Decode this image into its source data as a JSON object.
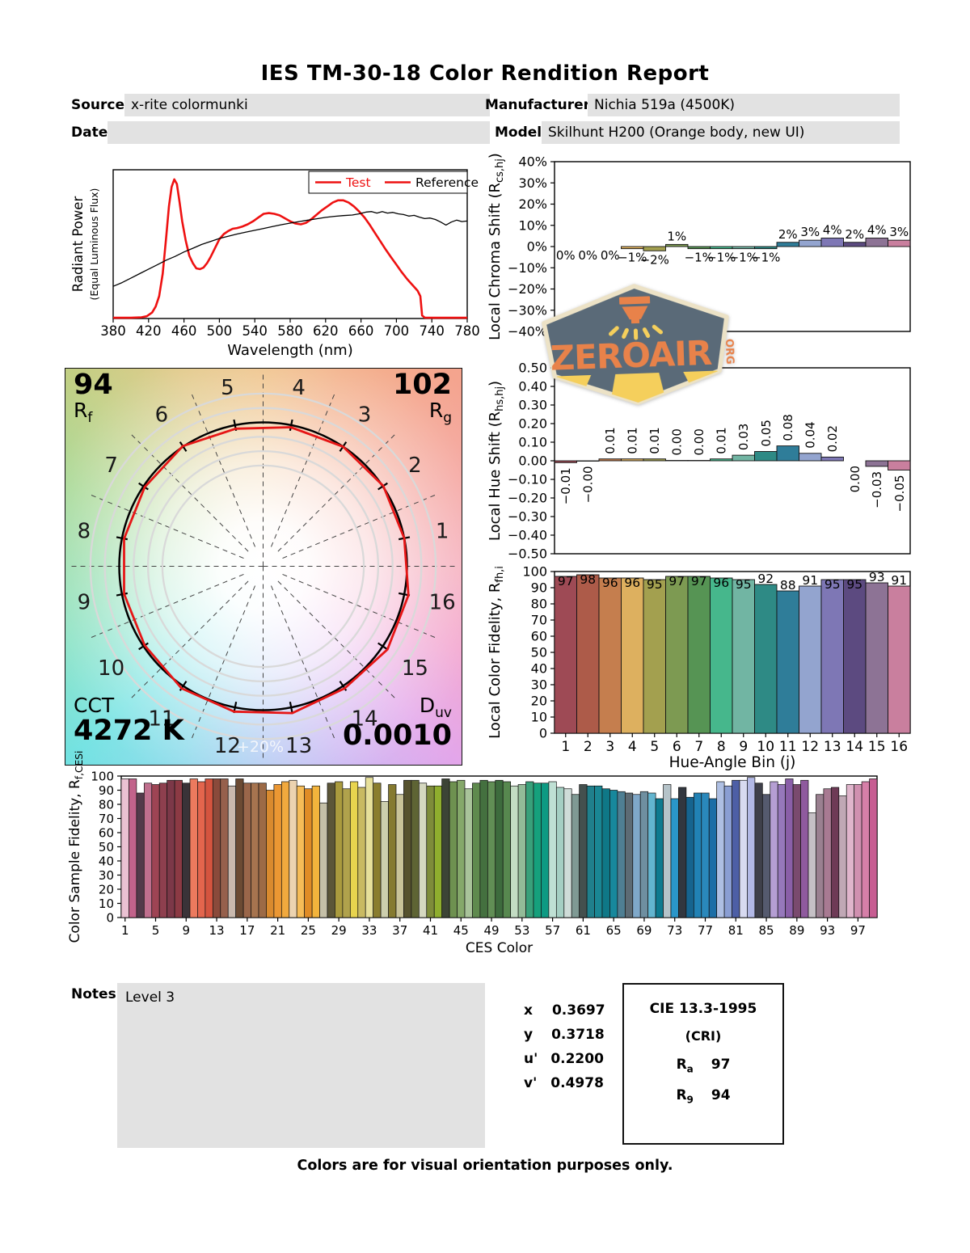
{
  "title": "IES TM-30-18 Color Rendition Report",
  "meta": {
    "source_label": "Source:",
    "source": "x-rite colormunki",
    "date_label": "Date:",
    "date": "",
    "manufacturer_label": "Manufacturer:",
    "manufacturer": "Nichia 519a (4500K)",
    "model_label": "Model:",
    "model": "Skilhunt H200 (Orange body, new UI)"
  },
  "logo": {
    "word": "ZEROAIR",
    "suffix": "ORG",
    "badge_color": "#5a6a78",
    "text_color": "#e8824a",
    "beam_color": "#f5cf5c",
    "border_color": "#ece2c6"
  },
  "notes": {
    "label": "Notes:",
    "content": "Level 3"
  },
  "chromaticity": {
    "rows": [
      {
        "label": "x",
        "value": "0.3697"
      },
      {
        "label": "y",
        "value": "0.3718"
      },
      {
        "label": "u'",
        "value": "0.2200"
      },
      {
        "label": "v'",
        "value": "0.4978"
      }
    ]
  },
  "cri_box": {
    "title": "CIE 13.3-1995",
    "subtitle": "(CRI)",
    "rows": [
      {
        "label": "R",
        "sub": "a",
        "value": "97"
      },
      {
        "label": "R",
        "sub": "9",
        "value": "94"
      }
    ]
  },
  "footer": "Colors are for visual orientation purposes only.",
  "cvg": {
    "rf_value": "94",
    "rf_label": "R",
    "rf_sub": "f",
    "rg_value": "102",
    "rg_label": "R",
    "rg_sub": "g",
    "cct_label": "CCT",
    "cct_value": "4272 K",
    "duv_label": "D",
    "duv_sub": "uv",
    "duv_value": "0.0010",
    "ring_label": "+20%",
    "bin_labels": [
      "1",
      "2",
      "3",
      "4",
      "5",
      "6",
      "7",
      "8",
      "9",
      "10",
      "11",
      "12",
      "13",
      "14",
      "15",
      "16"
    ],
    "red_radii": [
      1.0,
      1.005,
      1.0,
      0.985,
      0.975,
      1.005,
      0.99,
      0.985,
      0.985,
      0.99,
      1.02,
      1.03,
      1.04,
      1.02,
      1.04,
      1.03
    ]
  },
  "bin_palette": [
    "#9e4a55",
    "#ad5b49",
    "#c57e4e",
    "#ddb05f",
    "#a3a04f",
    "#7d9a52",
    "#569454",
    "#46b78c",
    "#71b5a3",
    "#2e8a85",
    "#2f7d99",
    "#93a4cf",
    "#7e77b5",
    "#5c4a80",
    "#8d7395",
    "#c97f9e"
  ],
  "chart_data": [
    {
      "id": "spd",
      "type": "line",
      "xlabel": "Wavelength (nm)",
      "ylabel": "Radiant Power",
      "ylabel2": "(Equal Luminous Flux)",
      "xlim": [
        380,
        780
      ],
      "xticks": [
        380,
        420,
        460,
        500,
        540,
        580,
        620,
        660,
        700,
        740,
        780
      ],
      "legend": [
        {
          "label": "Test",
          "line_color": "#ee1111",
          "text_color": "#ee1111"
        },
        {
          "label": "Reference",
          "line_color": "#ee1111",
          "text_color": "#000000"
        }
      ],
      "series": [
        {
          "name": "Test",
          "color": "#ee1111",
          "width": 2.6,
          "points": [
            [
              380,
              0.005
            ],
            [
              400,
              0.005
            ],
            [
              412,
              0.008
            ],
            [
              418,
              0.015
            ],
            [
              424,
              0.04
            ],
            [
              428,
              0.08
            ],
            [
              432,
              0.15
            ],
            [
              436,
              0.3
            ],
            [
              440,
              0.55
            ],
            [
              443,
              0.75
            ],
            [
              446,
              0.88
            ],
            [
              449,
              0.93
            ],
            [
              452,
              0.9
            ],
            [
              455,
              0.78
            ],
            [
              458,
              0.65
            ],
            [
              462,
              0.52
            ],
            [
              466,
              0.42
            ],
            [
              470,
              0.37
            ],
            [
              474,
              0.335
            ],
            [
              478,
              0.33
            ],
            [
              482,
              0.34
            ],
            [
              486,
              0.37
            ],
            [
              490,
              0.41
            ],
            [
              495,
              0.47
            ],
            [
              500,
              0.53
            ],
            [
              505,
              0.565
            ],
            [
              510,
              0.585
            ],
            [
              515,
              0.6
            ],
            [
              520,
              0.605
            ],
            [
              526,
              0.615
            ],
            [
              532,
              0.63
            ],
            [
              538,
              0.65
            ],
            [
              544,
              0.675
            ],
            [
              550,
              0.7
            ],
            [
              556,
              0.705
            ],
            [
              562,
              0.7
            ],
            [
              568,
              0.69
            ],
            [
              574,
              0.67
            ],
            [
              580,
              0.65
            ],
            [
              586,
              0.635
            ],
            [
              592,
              0.63
            ],
            [
              598,
              0.64
            ],
            [
              604,
              0.665
            ],
            [
              610,
              0.695
            ],
            [
              616,
              0.725
            ],
            [
              622,
              0.75
            ],
            [
              628,
              0.775
            ],
            [
              634,
              0.79
            ],
            [
              640,
              0.79
            ],
            [
              646,
              0.775
            ],
            [
              652,
              0.75
            ],
            [
              658,
              0.715
            ],
            [
              664,
              0.675
            ],
            [
              670,
              0.625
            ],
            [
              676,
              0.57
            ],
            [
              682,
              0.515
            ],
            [
              688,
              0.46
            ],
            [
              694,
              0.41
            ],
            [
              700,
              0.36
            ],
            [
              706,
              0.31
            ],
            [
              712,
              0.265
            ],
            [
              718,
              0.225
            ],
            [
              724,
              0.185
            ],
            [
              727,
              0.15
            ],
            [
              729,
              0.02
            ],
            [
              732,
              0.006
            ],
            [
              740,
              0.005
            ],
            [
              780,
              0.005
            ]
          ]
        },
        {
          "name": "Reference",
          "color": "#000000",
          "width": 1.3,
          "points": [
            [
              380,
              0.215
            ],
            [
              390,
              0.24
            ],
            [
              400,
              0.27
            ],
            [
              410,
              0.3
            ],
            [
              420,
              0.33
            ],
            [
              430,
              0.36
            ],
            [
              440,
              0.39
            ],
            [
              450,
              0.415
            ],
            [
              460,
              0.445
            ],
            [
              470,
              0.47
            ],
            [
              480,
              0.495
            ],
            [
              490,
              0.515
            ],
            [
              500,
              0.535
            ],
            [
              510,
              0.55
            ],
            [
              520,
              0.565
            ],
            [
              530,
              0.578
            ],
            [
              540,
              0.59
            ],
            [
              550,
              0.602
            ],
            [
              560,
              0.615
            ],
            [
              570,
              0.627
            ],
            [
              580,
              0.638
            ],
            [
              590,
              0.648
            ],
            [
              600,
              0.658
            ],
            [
              610,
              0.667
            ],
            [
              620,
              0.676
            ],
            [
              630,
              0.683
            ],
            [
              640,
              0.688
            ],
            [
              650,
              0.692
            ],
            [
              658,
              0.7
            ],
            [
              666,
              0.712
            ],
            [
              672,
              0.715
            ],
            [
              678,
              0.705
            ],
            [
              684,
              0.715
            ],
            [
              690,
              0.705
            ],
            [
              696,
              0.71
            ],
            [
              702,
              0.7
            ],
            [
              708,
              0.695
            ],
            [
              714,
              0.685
            ],
            [
              720,
              0.69
            ],
            [
              726,
              0.678
            ],
            [
              732,
              0.668
            ],
            [
              738,
              0.672
            ],
            [
              744,
              0.662
            ],
            [
              750,
              0.645
            ],
            [
              756,
              0.625
            ],
            [
              762,
              0.645
            ],
            [
              768,
              0.658
            ],
            [
              774,
              0.648
            ],
            [
              780,
              0.652
            ]
          ]
        }
      ]
    },
    {
      "id": "chroma_shift",
      "type": "bar",
      "ylabel_parts": [
        {
          "t": "Local Chroma Shift (R"
        },
        {
          "t": "cs,hj",
          "sub": true
        },
        {
          "t": ")"
        }
      ],
      "ylim": [
        -40,
        40
      ],
      "ytick_vals": [
        40,
        30,
        20,
        10,
        0,
        -10,
        -20,
        -30,
        -40
      ],
      "ytick_labels": [
        "40%",
        "30%",
        "20%",
        "10%",
        "0%",
        "−10%",
        "−20%",
        "−30%",
        "−40%"
      ],
      "values": [
        0,
        0,
        0,
        -1,
        -2,
        1,
        -1,
        -1,
        -1,
        -1,
        2,
        3,
        4,
        2,
        4,
        3
      ],
      "labels": [
        "0%",
        "0%",
        "0%",
        "−1%",
        "−2%",
        "1%",
        "−1%",
        "−1%",
        "−1%",
        "−1%",
        "2%",
        "3%",
        "4%",
        "2%",
        "4%",
        "3%"
      ]
    },
    {
      "id": "hue_shift",
      "type": "bar",
      "ylabel_parts": [
        {
          "t": "Local Hue Shift (R"
        },
        {
          "t": "hs,hj",
          "sub": true
        },
        {
          "t": ")"
        }
      ],
      "ylim": [
        -0.5,
        0.5
      ],
      "ytick_vals": [
        0.5,
        0.4,
        0.3,
        0.2,
        0.1,
        0,
        -0.1,
        -0.2,
        -0.3,
        -0.4,
        -0.5
      ],
      "ytick_labels": [
        "0.50",
        "0.40",
        "0.30",
        "0.20",
        "0.10",
        "0.00",
        "−0.10",
        "−0.20",
        "−0.30",
        "−0.40",
        "−0.50"
      ],
      "values": [
        -0.01,
        -0.002,
        0.01,
        0.01,
        0.01,
        0.002,
        0.002,
        0.01,
        0.03,
        0.05,
        0.08,
        0.04,
        0.02,
        0,
        -0.03,
        -0.05
      ],
      "labels": [
        "−0.01",
        "−0.00",
        "0.01",
        "0.01",
        "0.01",
        "0.00",
        "0.00",
        "0.01",
        "0.03",
        "0.05",
        "0.08",
        "0.04",
        "0.02",
        "0.00",
        "−0.03",
        "−0.05"
      ]
    },
    {
      "id": "fidelity",
      "type": "bar",
      "ylabel_parts": [
        {
          "t": "Local Color Fidelity, R"
        },
        {
          "t": "fh,i",
          "sub": true
        }
      ],
      "xlabel": "Hue-Angle Bin (j)",
      "ylim": [
        0,
        100
      ],
      "ytick_vals": [
        100,
        90,
        80,
        70,
        60,
        50,
        40,
        30,
        20,
        10,
        0
      ],
      "ytick_labels": [
        "100",
        "90",
        "80",
        "70",
        "60",
        "50",
        "40",
        "30",
        "20",
        "10",
        "0"
      ],
      "xticks": [
        "1",
        "2",
        "3",
        "4",
        "5",
        "6",
        "7",
        "8",
        "9",
        "10",
        "11",
        "12",
        "13",
        "14",
        "15",
        "16"
      ],
      "values": [
        97,
        98,
        96,
        96,
        95,
        97,
        97,
        96,
        95,
        92,
        88,
        91,
        95,
        95,
        93,
        91
      ]
    },
    {
      "id": "ces",
      "type": "bar",
      "ylabel_parts": [
        {
          "t": "Color Sample Fidelity, R"
        },
        {
          "t": "f,CESi",
          "sub": true
        }
      ],
      "xlabel": "CES Color",
      "ylim": [
        0,
        100
      ],
      "ytick_vals": [
        100,
        90,
        80,
        70,
        60,
        50,
        40,
        30,
        20,
        10,
        0
      ],
      "ytick_labels": [
        "100",
        "90",
        "80",
        "70",
        "60",
        "50",
        "40",
        "30",
        "20",
        "10",
        "0"
      ],
      "xtick_positions": [
        1,
        5,
        9,
        13,
        17,
        21,
        25,
        29,
        33,
        37,
        41,
        45,
        49,
        53,
        57,
        61,
        65,
        69,
        73,
        77,
        81,
        85,
        89,
        93,
        97
      ],
      "values": [
        98,
        98,
        88,
        95,
        94,
        95,
        97,
        97,
        95,
        98,
        96,
        98,
        98,
        98,
        93,
        98,
        95,
        95,
        95,
        90,
        94,
        96,
        97,
        93,
        91,
        93,
        81,
        95,
        96,
        91,
        96,
        92,
        99,
        95,
        82,
        94,
        87,
        97,
        97,
        95,
        93,
        93,
        98,
        96,
        97,
        91,
        95,
        97,
        96,
        97,
        96,
        93,
        94,
        96,
        95,
        95,
        96,
        92,
        91,
        87,
        94,
        93,
        93,
        91,
        90,
        89,
        88,
        87,
        89,
        88,
        84,
        94,
        84,
        92,
        85,
        88,
        88,
        84,
        96,
        93,
        97,
        97,
        99,
        95,
        87,
        96,
        94,
        98,
        94,
        97,
        74,
        87,
        91,
        92,
        86,
        94,
        94,
        96,
        98
      ],
      "colors": [
        "#eac1d2",
        "#c2638b",
        "#533a4a",
        "#c06f8e",
        "#9e4454",
        "#8e3f4e",
        "#7c3848",
        "#8c3a44",
        "#3a3338",
        "#ec7a5e",
        "#e3654d",
        "#d4543f",
        "#8a4a3b",
        "#96604c",
        "#c9b9ae",
        "#6b4a33",
        "#9a664a",
        "#a6744f",
        "#9c6a46",
        "#d98a2e",
        "#eb9733",
        "#f1a93e",
        "#ecd3b0",
        "#f6bc57",
        "#e08c26",
        "#f3b43c",
        "#c5c0a8",
        "#5c5638",
        "#aa9b3e",
        "#b0a24c",
        "#e8d44e",
        "#c9ba62",
        "#e7e09a",
        "#8a7d2e",
        "#cccead",
        "#857a30",
        "#c9c399",
        "#56522e",
        "#5e6434",
        "#d5d8c0",
        "#7e8c3a",
        "#8fae2e",
        "#3c4436",
        "#6e9150",
        "#85a86a",
        "#a9c39a",
        "#5f8a4e",
        "#44703f",
        "#618e55",
        "#3d6b3d",
        "#57884f",
        "#c3dcc3",
        "#93bb98",
        "#39a07a",
        "#16a07c",
        "#0d9a83",
        "#bfe0d4",
        "#a5cfc3",
        "#cfdcd8",
        "#7f9a94",
        "#44504e",
        "#20808c",
        "#1a8794",
        "#0f7887",
        "#17889c",
        "#4f7f93",
        "#5d6b74",
        "#7fa8c9",
        "#6f8fa0",
        "#63b5cf",
        "#0e7a8f",
        "#b5c3c9",
        "#2a96c9",
        "#32373f",
        "#16648f",
        "#2182b5",
        "#2a88bb",
        "#1c6ea6",
        "#aebfe3",
        "#8a9ed3",
        "#4d5fa6",
        "#d8daf0",
        "#b3b9e6",
        "#3f404a",
        "#555a6e",
        "#b59ed3",
        "#9678bb",
        "#8a5fa8",
        "#7a4a6e",
        "#8f5a9e",
        "#c5c0c5",
        "#9a8090",
        "#a87a92",
        "#6e3a56",
        "#c0a8b5",
        "#e0b5cc",
        "#d090b0",
        "#d67fa8",
        "#c75d92"
      ]
    }
  ]
}
